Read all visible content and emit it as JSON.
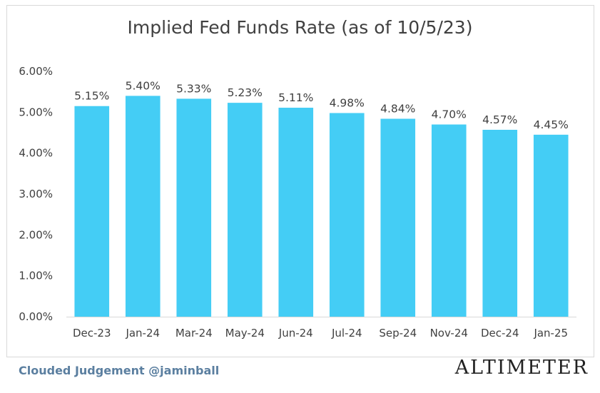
{
  "chart_data": {
    "type": "bar",
    "title": "Implied Fed Funds Rate (as of 10/5/23)",
    "categories": [
      "Dec-23",
      "Jan-24",
      "Mar-24",
      "May-24",
      "Jun-24",
      "Jul-24",
      "Sep-24",
      "Nov-24",
      "Dec-24",
      "Jan-25"
    ],
    "values": [
      5.15,
      5.4,
      5.33,
      5.23,
      5.11,
      4.98,
      4.84,
      4.7,
      4.57,
      4.45
    ],
    "data_labels": [
      "5.15%",
      "5.40%",
      "5.33%",
      "5.23%",
      "5.11%",
      "4.98%",
      "4.84%",
      "4.70%",
      "4.57%",
      "4.45%"
    ],
    "yticks": [
      "0.00%",
      "1.00%",
      "2.00%",
      "3.00%",
      "4.00%",
      "5.00%",
      "6.00%"
    ],
    "ylim": [
      0,
      6
    ],
    "grid": false,
    "bar_color": "#44cdf5"
  },
  "footer": {
    "source": "Clouded Judgement @jaminball",
    "brand": "ALTIMETER"
  }
}
